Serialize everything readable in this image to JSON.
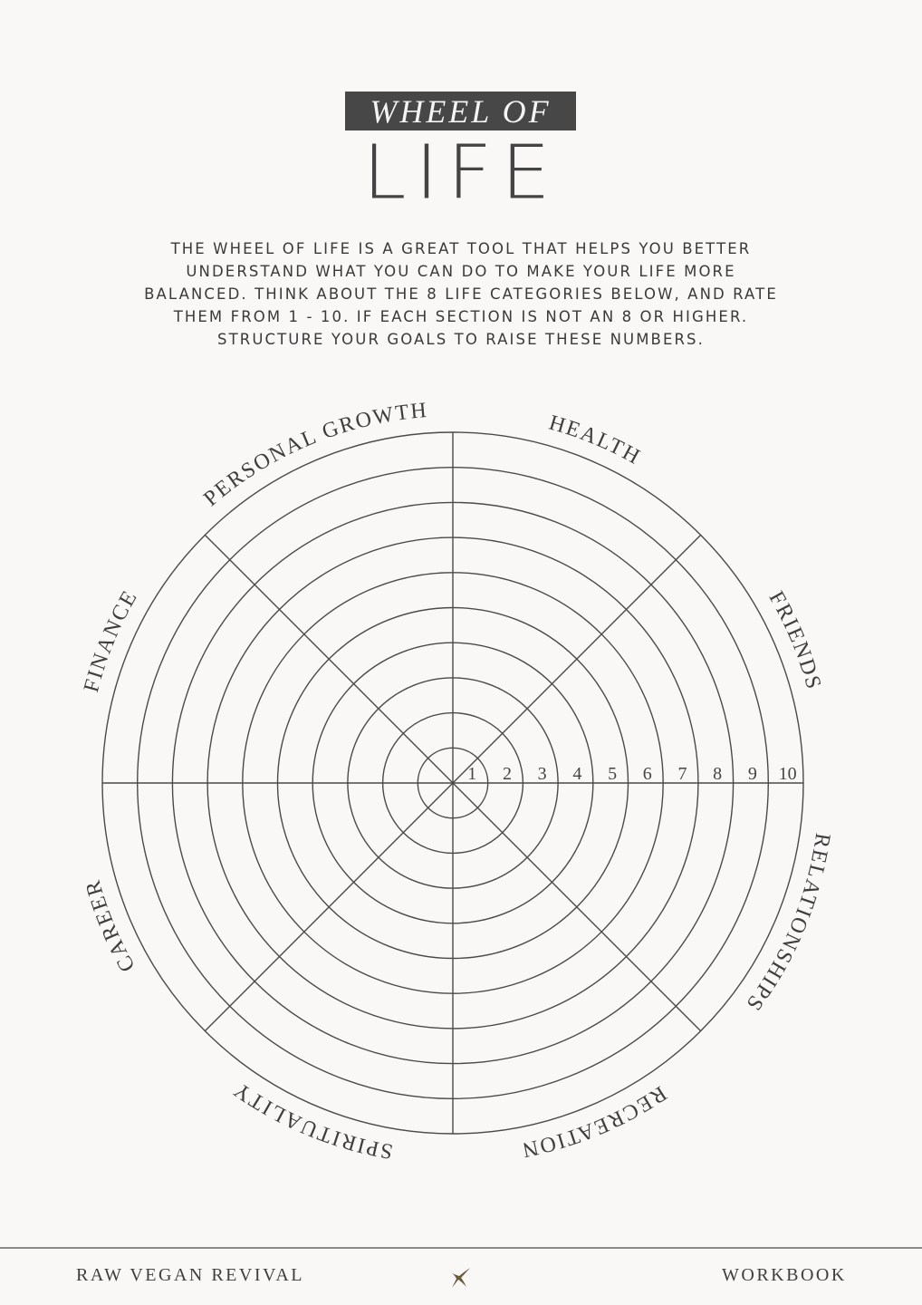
{
  "header": {
    "badge": "WHEEL OF",
    "title": "LIFE"
  },
  "intro_lines": [
    "THE WHEEL OF LIFE IS A GREAT TOOL THAT HELPS YOU BETTER",
    "UNDERSTAND WHAT YOU CAN DO TO MAKE YOUR LIFE MORE",
    "BALANCED. THINK ABOUT THE 8 LIFE CATEGORIES BELOW, AND RATE",
    "THEM FROM 1 - 10. IF EACH SECTION IS NOT AN 8 OR HIGHER.",
    "STRUCTURE YOUR GOALS TO RAISE THESE NUMBERS."
  ],
  "wheel": {
    "categories": [
      "PERSONAL GROWTH",
      "HEALTH",
      "FRIENDS",
      "RELATIONSHIPS",
      "RECREATION",
      "SPIRITUALITY",
      "CAREER",
      "FINANCE"
    ],
    "scale": [
      "1",
      "2",
      "3",
      "4",
      "5",
      "6",
      "7",
      "8",
      "9",
      "10"
    ]
  },
  "footer": {
    "left": "RAW VEGAN REVIVAL",
    "right": "WORKBOOK",
    "star_icon": "four-point-star",
    "star_color": "#6b5a3a"
  }
}
